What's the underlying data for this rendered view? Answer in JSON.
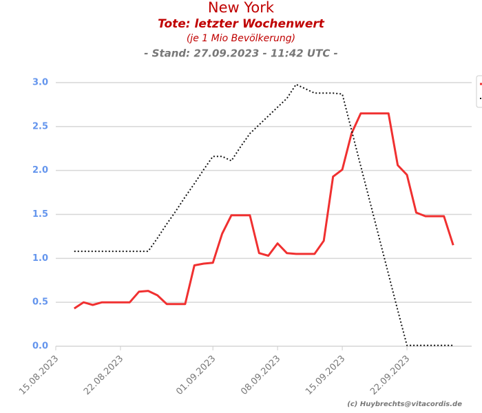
{
  "chart_data": {
    "type": "line",
    "title": "New York",
    "subtitle": "Tote: letzter Wochenwert",
    "subtitle2": "(je 1 Mio Bevölkerung)",
    "subtitle3": "- Stand: 27.09.2023 - 11:42 UTC -",
    "credit": "(c) Huybrechts@vitacordis.de",
    "x": [
      "17.08.2023",
      "18.08.2023",
      "19.08.2023",
      "20.08.2023",
      "21.08.2023",
      "22.08.2023",
      "23.08.2023",
      "24.08.2023",
      "25.08.2023",
      "26.08.2023",
      "27.08.2023",
      "28.08.2023",
      "29.08.2023",
      "30.08.2023",
      "31.08.2023",
      "01.09.2023",
      "02.09.2023",
      "03.09.2023",
      "04.09.2023",
      "05.09.2023",
      "06.09.2023",
      "07.09.2023",
      "08.09.2023",
      "09.09.2023",
      "10.09.2023",
      "11.09.2023",
      "12.09.2023",
      "13.09.2023",
      "14.09.2023",
      "15.09.2023",
      "16.09.2023",
      "17.09.2023",
      "18.09.2023",
      "19.09.2023",
      "20.09.2023",
      "21.09.2023",
      "22.09.2023",
      "23.09.2023",
      "24.09.2023",
      "25.09.2023",
      "26.09.2023",
      "27.09.2023"
    ],
    "series": [
      {
        "color": "#f03030",
        "style": "solid",
        "values": [
          0.43,
          0.5,
          0.47,
          0.5,
          0.5,
          0.5,
          0.5,
          0.62,
          0.63,
          0.58,
          0.48,
          0.48,
          0.48,
          0.92,
          0.94,
          0.95,
          1.28,
          1.49,
          1.49,
          1.49,
          1.06,
          1.03,
          1.17,
          1.06,
          1.05,
          1.05,
          1.05,
          1.2,
          1.93,
          2.01,
          2.42,
          2.65,
          2.65,
          2.65,
          2.65,
          2.06,
          1.95,
          1.52,
          1.48,
          1.48,
          1.48,
          1.15
        ]
      },
      {
        "color": "#111111",
        "style": "dotted",
        "values": [
          1.08,
          1.08,
          1.08,
          1.08,
          1.08,
          1.08,
          1.08,
          1.08,
          1.08,
          1.23,
          1.39,
          1.54,
          1.7,
          1.85,
          2.01,
          2.16,
          2.16,
          2.11,
          2.27,
          2.42,
          2.52,
          2.62,
          2.72,
          2.82,
          2.98,
          2.93,
          2.88,
          2.88,
          2.88,
          2.87,
          2.46,
          2.05,
          1.64,
          1.23,
          0.82,
          0.41,
          0.01,
          0.01,
          0.01,
          0.01,
          0.01,
          0.01
        ]
      }
    ],
    "xlim": [
      "15.08.2023",
      "29.09.2023"
    ],
    "xticks": [
      "15.08.2023",
      "22.08.2023",
      "01.09.2023",
      "08.09.2023",
      "15.09.2023",
      "22.09.2023"
    ],
    "ylim": [
      0,
      3
    ],
    "yticks": [
      {
        "value": 0,
        "label": "0.0"
      },
      {
        "value": 0.5,
        "label": "0.5"
      },
      {
        "value": 1,
        "label": "1.0"
      },
      {
        "value": 1.5,
        "label": "1.5"
      },
      {
        "value": 2,
        "label": "2.0"
      },
      {
        "value": 2.5,
        "label": "2.5"
      },
      {
        "value": 3,
        "label": "3.0"
      }
    ],
    "grid": true
  }
}
